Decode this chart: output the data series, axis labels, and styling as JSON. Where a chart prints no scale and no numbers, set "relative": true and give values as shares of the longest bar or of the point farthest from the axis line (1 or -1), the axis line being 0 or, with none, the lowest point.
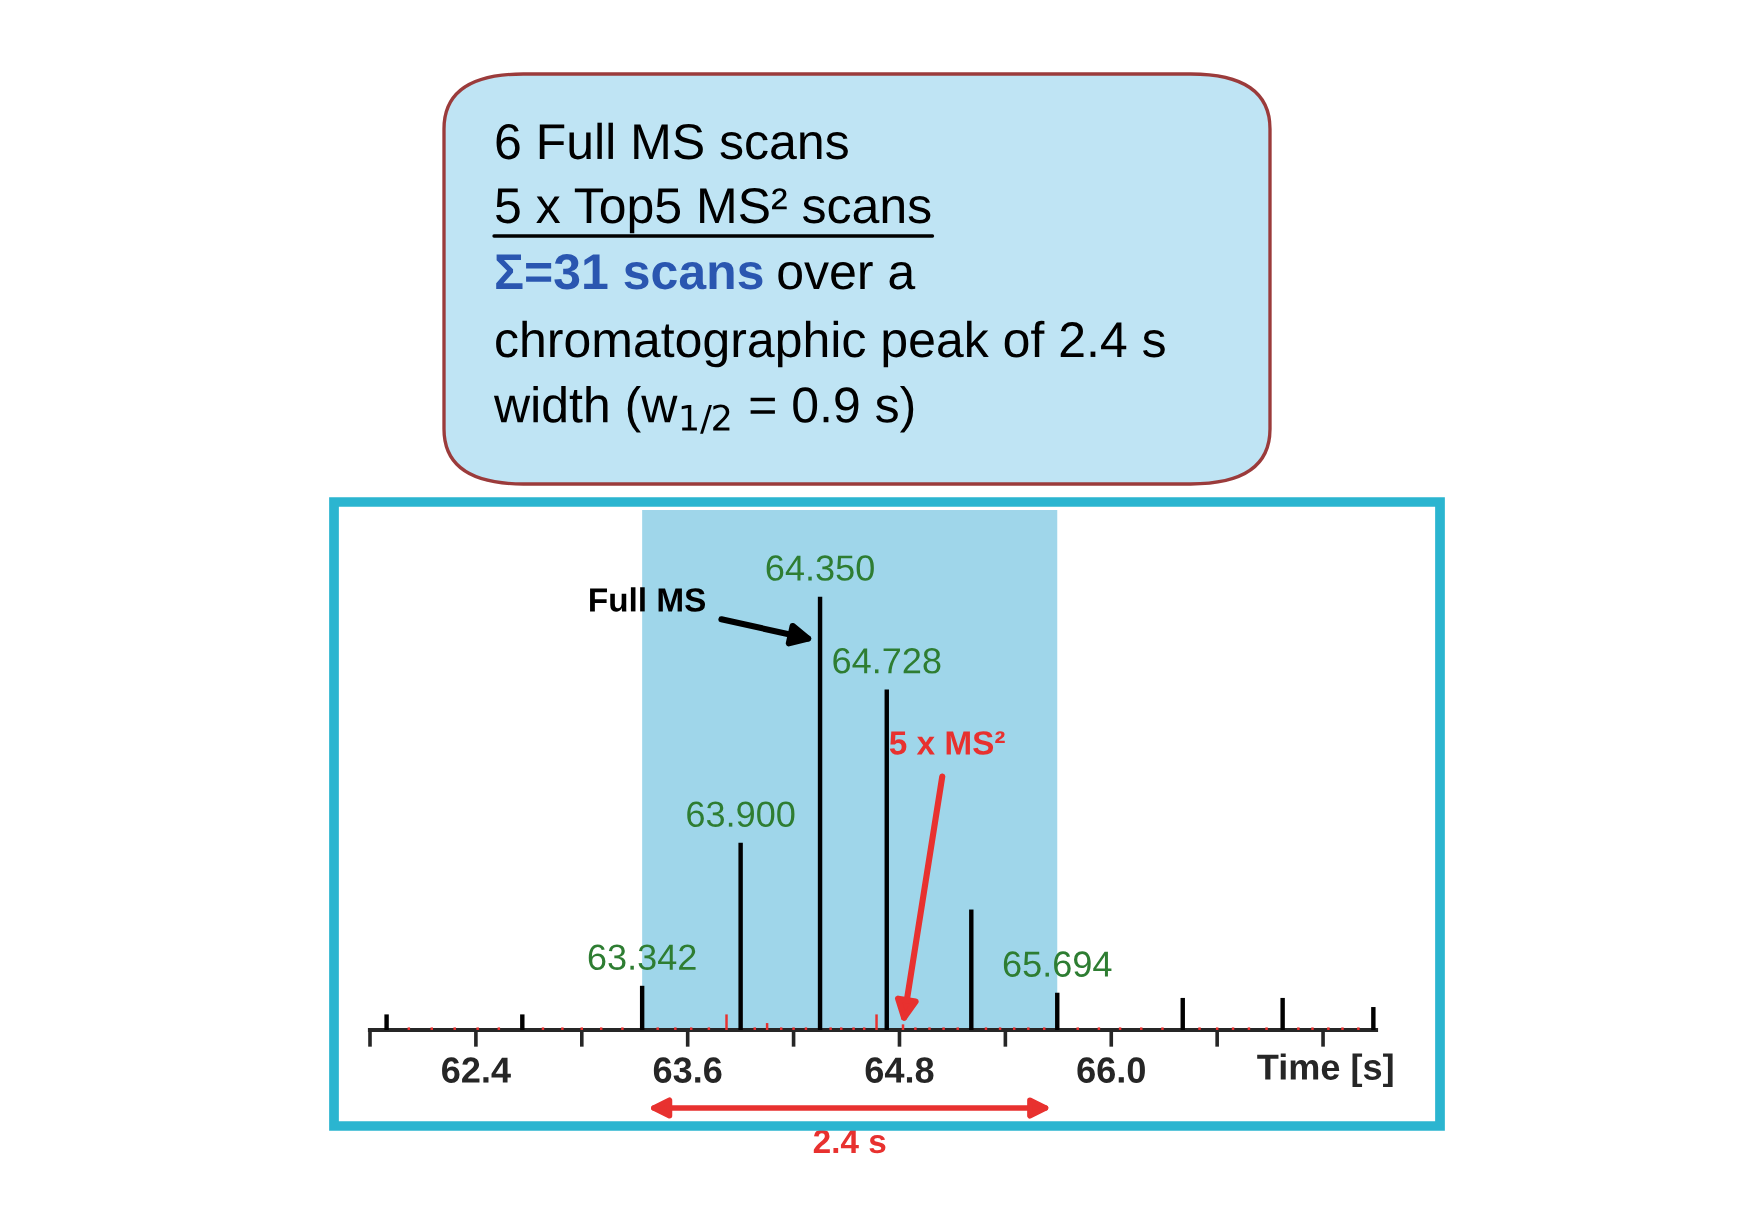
{
  "chart_data": {
    "type": "bar",
    "relative": true,
    "xlabel": "Time [s]",
    "xlim": [
      61.8,
      67.5
    ],
    "xticks": [
      {
        "value": 61.8,
        "label": null
      },
      62.4,
      {
        "value": 63.0,
        "label": null
      },
      63.6,
      {
        "value": 64.2,
        "label": null
      },
      64.8,
      {
        "value": 65.4,
        "label": null
      },
      {
        "value": 66,
        "label": "66.0"
      },
      {
        "value": 66.6,
        "label": null
      },
      {
        "value": 67.2,
        "label": null
      }
    ],
    "tick_labels": "x",
    "series": [
      {
        "color": "#000000",
        "x": [
          61.894,
          62.663,
          63.342,
          63.9,
          64.35,
          64.728,
          65.207,
          65.694,
          66.405,
          66.971,
          67.485
        ],
        "values": [
          0.036,
          0.036,
          0.102,
          0.432,
          1,
          0.786,
          0.278,
          0.086,
          0.074,
          0.074,
          0.053
        ]
      },
      {
        "color": "#e8312f",
        "x": [
          62.02,
          62.15,
          62.28,
          62.41,
          62.53,
          62.78,
          62.89,
          63.0,
          63.11,
          63.23,
          63.43,
          63.53,
          63.62,
          63.72,
          63.82,
          63.98,
          64.05,
          64.13,
          64.2,
          64.27,
          64.41,
          64.47,
          64.54,
          64.6,
          64.67,
          64.82,
          64.89,
          64.97,
          65.05,
          65.13,
          65.29,
          65.37,
          65.45,
          65.53,
          65.62,
          65.81,
          65.93,
          66.05,
          66.17,
          66.29,
          66.5,
          66.6,
          66.69,
          66.78,
          66.88,
          67.06,
          67.14,
          67.23,
          67.31,
          67.4
        ],
        "values": [
          0.006,
          0.006,
          0.006,
          0.006,
          0.006,
          0.006,
          0.006,
          0.006,
          0.006,
          0.006,
          0.006,
          0.006,
          0.006,
          0.006,
          0.036,
          0.006,
          0.016,
          0.006,
          0.006,
          0.006,
          0.006,
          0.006,
          0.006,
          0.006,
          0.036,
          0.013,
          0.006,
          0.006,
          0.006,
          0.006,
          0.006,
          0.006,
          0.006,
          0.006,
          0.006,
          0.006,
          0.006,
          0.006,
          0.006,
          0.006,
          0.006,
          0.006,
          0.006,
          0.006,
          0.006,
          0.006,
          0.006,
          0.006,
          0.006,
          0.006
        ]
      }
    ],
    "bands": [
      {
        "axis": "x",
        "from": 63.342,
        "to": 65.694,
        "label": "2.4 s",
        "color": "#9fd6ea"
      }
    ],
    "annotations": [
      "6 Full MS scans",
      "5 x Top5 MS² scans",
      "Σ=31 scans",
      "over a",
      "chromatographic peak of 2.4 s",
      "width (w$_{1/2}$ = 0.9 s)",
      {
        "text": "63.342",
        "x": 63.342,
        "y": 0.102
      },
      {
        "text": "63.900",
        "x": 63.9,
        "y": 0.432
      },
      {
        "text": "64.350",
        "x": 64.35,
        "y": 1
      },
      {
        "text": "64.728",
        "x": 64.728,
        "y": 0.786
      },
      {
        "text": "65.694",
        "x": 65.694,
        "y": 0.086
      },
      {
        "text": "Full MS",
        "x": 64.32,
        "y": 0.9
      },
      {
        "text": "5 x MS²",
        "x": 64.82,
        "y": 0.013
      }
    ],
    "grid": false,
    "legend": false
  }
}
